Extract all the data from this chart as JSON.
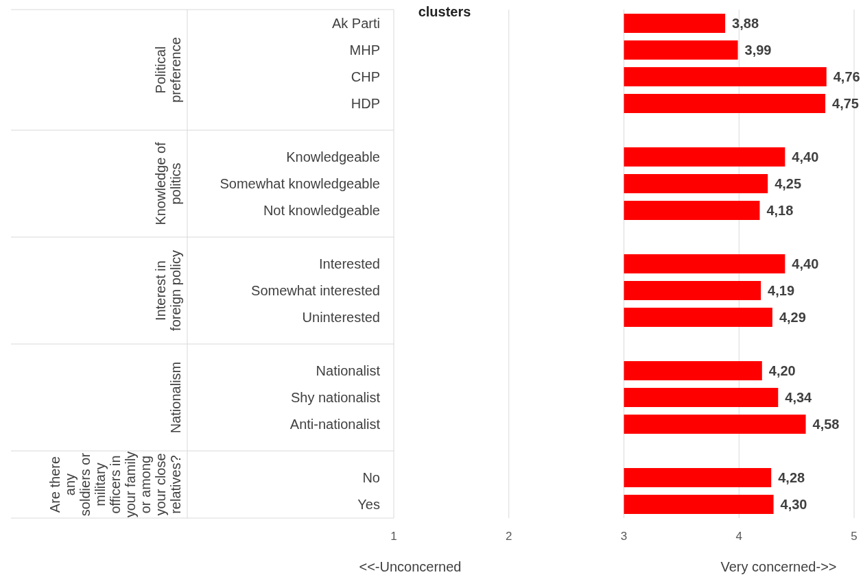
{
  "chart_data": {
    "type": "bar",
    "orientation": "horizontal",
    "title": "clusters",
    "categories": [
      "Ak Parti",
      "MHP",
      "CHP",
      "HDP",
      null,
      "Knowledgeable",
      "Somewhat knowledgeable",
      "Not knowledgeable",
      null,
      "Interested",
      "Somewhat interested",
      "Uninterested",
      null,
      "Nationalist",
      "Shy nationalist",
      "Anti-nationalist",
      null,
      "No",
      "Yes"
    ],
    "base": [
      3,
      3,
      3,
      3,
      null,
      3,
      3,
      3,
      null,
      3,
      3,
      3,
      null,
      3,
      3,
      3,
      null,
      3,
      3
    ],
    "values": [
      0.88,
      0.99,
      1.76,
      1.75,
      null,
      1.4,
      1.25,
      1.18,
      null,
      1.4,
      1.19,
      1.29,
      null,
      1.2,
      1.34,
      1.58,
      null,
      1.28,
      1.3
    ],
    "value_labels": [
      "3,88",
      "3,99",
      "4,76",
      "4,75",
      null,
      "4,40",
      "4,25",
      "4,18",
      null,
      "4,40",
      "4,19",
      "4,29",
      null,
      "4,20",
      "4,34",
      "4,58",
      null,
      "4,28",
      "4,30"
    ],
    "color": "#ff0000",
    "xlim": [
      1,
      5
    ],
    "xticks": [
      1,
      2,
      3,
      4,
      5
    ],
    "grid": "x",
    "annotations": [
      "Political preference",
      "Knowledge of politics",
      "Interest in foreign policy",
      "Nationalism",
      "Are there any soldiers or military officers in your family or among your close relatives?",
      "<<-Unconcerned",
      "Very concerned->>"
    ]
  }
}
